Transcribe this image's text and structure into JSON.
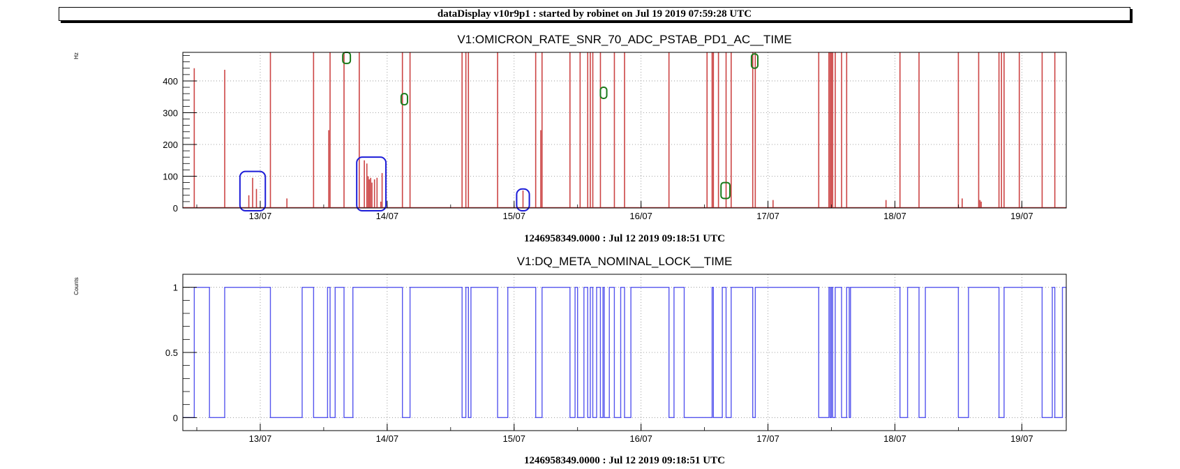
{
  "header": {
    "title": "dataDisplay v10r9p1 : started by robinet on Jul 19 2019 07:59:28 UTC"
  },
  "chart_data": [
    {
      "type": "line",
      "title": "V1:OMICRON_RATE_SNR_70_ADC_PSTAB_PD1_AC__TIME",
      "ylabel": "Hz",
      "xlabel": "1246958349.0000 : Jul 12 2019 09:18:51 UTC",
      "x_unit": "days since Jul 12 00:00 UTC",
      "xlim": [
        12.39,
        19.35
      ],
      "ylim": [
        0,
        490
      ],
      "yticks": [
        0,
        100,
        200,
        300,
        400
      ],
      "xticks": [
        {
          "x": 13,
          "label": "13/07"
        },
        {
          "x": 14,
          "label": "14/07"
        },
        {
          "x": 15,
          "label": "15/07"
        },
        {
          "x": 16,
          "label": "16/07"
        },
        {
          "x": 17,
          "label": "17/07"
        },
        {
          "x": 18,
          "label": "18/07"
        },
        {
          "x": 19,
          "label": "19/07"
        }
      ],
      "grid": true,
      "color": "#cc4444",
      "series": [
        {
          "spikes": [
            [
              12.48,
              440
            ],
            [
              12.72,
              435
            ],
            [
              12.91,
              40
            ],
            [
              12.94,
              95
            ],
            [
              12.97,
              60
            ],
            [
              13.21,
              30
            ],
            [
              13.08,
              490
            ],
            [
              13.42,
              490
            ],
            [
              13.54,
              245
            ],
            [
              13.55,
              490
            ],
            [
              13.66,
              490
            ],
            [
              13.78,
              490
            ],
            [
              13.82,
              150
            ],
            [
              13.84,
              140
            ],
            [
              13.85,
              100
            ],
            [
              13.86,
              90
            ],
            [
              13.87,
              95
            ],
            [
              13.88,
              80
            ],
            [
              13.9,
              90
            ],
            [
              13.92,
              95
            ],
            [
              13.95,
              20
            ],
            [
              13.96,
              110
            ],
            [
              14.12,
              490
            ],
            [
              14.18,
              490
            ],
            [
              14.59,
              490
            ],
            [
              14.62,
              490
            ],
            [
              14.64,
              490
            ],
            [
              14.87,
              490
            ],
            [
              15.07,
              55
            ],
            [
              15.17,
              490
            ],
            [
              15.21,
              245
            ],
            [
              15.22,
              490
            ],
            [
              15.44,
              490
            ],
            [
              15.52,
              490
            ],
            [
              15.58,
              490
            ],
            [
              15.6,
              490
            ],
            [
              15.62,
              490
            ],
            [
              15.68,
              490
            ],
            [
              15.79,
              490
            ],
            [
              15.87,
              490
            ],
            [
              16.22,
              490
            ],
            [
              16.52,
              490
            ],
            [
              16.56,
              490
            ],
            [
              16.57,
              490
            ],
            [
              16.61,
              490
            ],
            [
              16.67,
              490
            ],
            [
              16.71,
              490
            ],
            [
              16.88,
              490
            ],
            [
              16.9,
              490
            ],
            [
              17.04,
              25
            ],
            [
              17.4,
              490
            ],
            [
              17.48,
              490
            ],
            [
              17.49,
              490
            ],
            [
              17.5,
              490
            ],
            [
              17.51,
              490
            ],
            [
              17.53,
              490
            ],
            [
              17.58,
              490
            ],
            [
              17.62,
              490
            ],
            [
              17.93,
              25
            ],
            [
              18.04,
              490
            ],
            [
              18.19,
              490
            ],
            [
              18.5,
              490
            ],
            [
              18.53,
              30
            ],
            [
              18.66,
              490
            ],
            [
              18.67,
              25
            ],
            [
              18.68,
              20
            ],
            [
              18.82,
              490
            ],
            [
              18.84,
              490
            ],
            [
              18.86,
              490
            ],
            [
              18.98,
              490
            ],
            [
              19.16,
              490
            ],
            [
              19.26,
              490
            ]
          ]
        }
      ],
      "annotations": {
        "blue_boxes": [
          [
            12.84,
            13.04,
            0,
            115
          ],
          [
            13.76,
            13.99,
            0,
            160
          ],
          [
            15.02,
            15.12,
            0,
            60
          ]
        ],
        "green_boxes": [
          [
            13.65,
            13.71,
            455,
            490
          ],
          [
            14.11,
            14.16,
            325,
            360
          ],
          [
            15.68,
            15.73,
            345,
            380
          ],
          [
            16.63,
            16.7,
            30,
            80
          ],
          [
            16.87,
            16.92,
            440,
            485
          ]
        ]
      }
    },
    {
      "type": "line",
      "title": "V1:DQ_META_NOMINAL_LOCK__TIME",
      "ylabel": "Counts",
      "xlabel": "1246958349.0000 : Jul 12 2019 09:18:51 UTC",
      "x_unit": "days since Jul 12 00:00 UTC",
      "xlim": [
        12.39,
        19.35
      ],
      "ylim": [
        -0.1,
        1.1
      ],
      "yticks": [
        0,
        0.5,
        1
      ],
      "ytick_labels": [
        "0",
        "0.5",
        "1"
      ],
      "xticks": [
        {
          "x": 13,
          "label": "13/07"
        },
        {
          "x": 14,
          "label": "14/07"
        },
        {
          "x": 15,
          "label": "15/07"
        },
        {
          "x": 16,
          "label": "16/07"
        },
        {
          "x": 17,
          "label": "17/07"
        },
        {
          "x": 18,
          "label": "18/07"
        },
        {
          "x": 19,
          "label": "19/07"
        }
      ],
      "grid": true,
      "color": "#5555ee",
      "series": [
        {
          "name": "lock",
          "start_state": 0,
          "segments_on": [
            [
              12.48,
              12.6
            ],
            [
              12.72,
              13.08
            ],
            [
              13.33,
              13.42
            ],
            [
              13.53,
              13.55
            ],
            [
              13.59,
              13.66
            ],
            [
              13.73,
              14.12
            ],
            [
              14.18,
              14.59
            ],
            [
              14.62,
              14.64
            ],
            [
              14.66,
              14.87
            ],
            [
              14.95,
              15.17
            ],
            [
              15.22,
              15.44
            ],
            [
              15.48,
              15.5
            ],
            [
              15.55,
              15.58
            ],
            [
              15.6,
              15.62
            ],
            [
              15.65,
              15.68
            ],
            [
              15.7,
              15.71
            ],
            [
              15.75,
              15.79
            ],
            [
              15.84,
              15.87
            ],
            [
              15.92,
              16.22
            ],
            [
              16.26,
              16.34
            ],
            [
              16.56,
              16.57
            ],
            [
              16.64,
              16.67
            ],
            [
              16.71,
              16.88
            ],
            [
              16.9,
              17.4
            ],
            [
              17.48,
              17.49
            ],
            [
              17.5,
              17.51
            ],
            [
              17.53,
              17.58
            ],
            [
              17.62,
              17.64
            ],
            [
              17.65,
              18.04
            ],
            [
              18.1,
              18.19
            ],
            [
              18.24,
              18.5
            ],
            [
              18.58,
              18.82
            ],
            [
              18.86,
              19.16
            ],
            [
              19.24,
              19.26
            ],
            [
              19.32,
              19.35
            ]
          ]
        }
      ]
    }
  ]
}
